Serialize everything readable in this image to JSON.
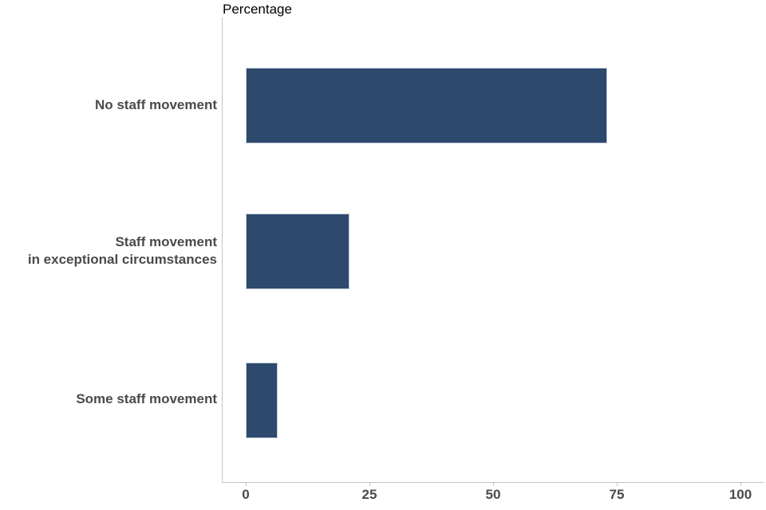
{
  "chart_data": {
    "type": "bar",
    "orientation": "horizontal",
    "title": "Percentage",
    "xlabel": "",
    "ylabel": "",
    "categories": [
      "No staff movement",
      "Staff movement in exceptional circumstances",
      "Some staff movement"
    ],
    "category_label_lines": [
      [
        "No staff movement"
      ],
      [
        "Staff movement",
        "in exceptional circumstances"
      ],
      [
        "Some staff movement"
      ]
    ],
    "values": [
      73,
      21,
      6.5
    ],
    "x_ticks": [
      0,
      25,
      50,
      75,
      100
    ],
    "xlim": [
      0,
      100
    ],
    "grid": false,
    "legend": false,
    "bar_color": "#2d4a6e",
    "bar_border_color": "#c6ccd6",
    "axis_color": "#c4c4c4",
    "label_color": "#4a4a4a",
    "title_color": "#000000"
  }
}
